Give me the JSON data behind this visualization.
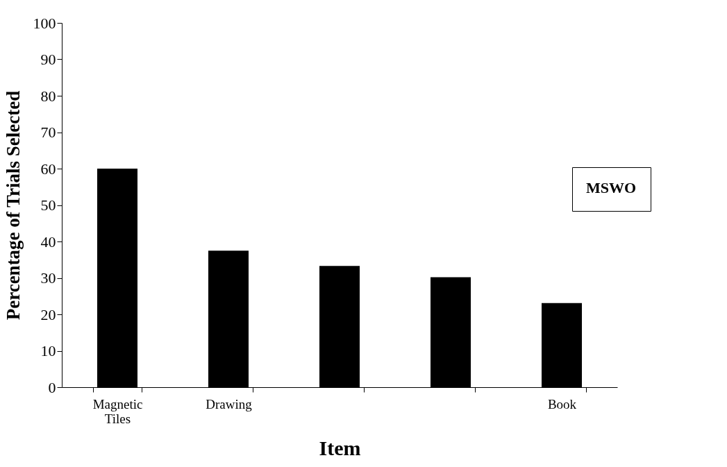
{
  "chart_data": {
    "type": "bar",
    "xlabel": "Item",
    "ylabel": "Percentage of Trials Selected",
    "categories": [
      "Magnetic Tiles",
      "Drawing",
      null,
      null,
      "Book"
    ],
    "values": [
      60,
      37.5,
      33.3,
      30.2,
      23.1
    ],
    "color": "#000000",
    "ylim": [
      0,
      100
    ],
    "yticks": [
      0,
      10,
      20,
      30,
      40,
      50,
      60,
      70,
      80,
      90,
      100
    ],
    "grid": false,
    "legend_title": "MSWO"
  }
}
